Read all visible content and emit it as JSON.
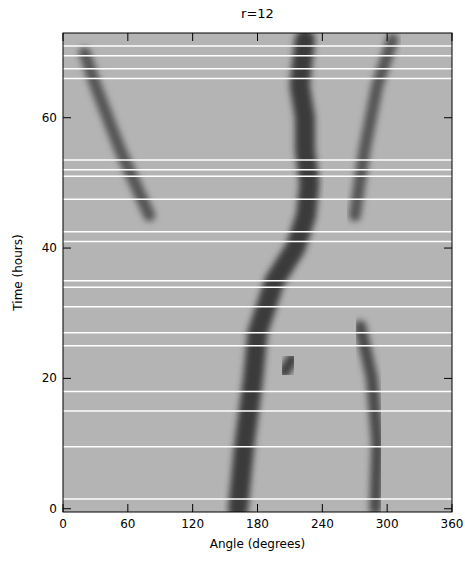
{
  "chart_data": {
    "type": "line",
    "title": "r=12",
    "x_label": "Angle (degrees)",
    "y_label": "Time (hours)",
    "xlim": [
      0,
      360
    ],
    "ylim": [
      -0.5,
      73
    ],
    "xticks": [
      0,
      60,
      120,
      180,
      240,
      300,
      360
    ],
    "yticks": [
      0,
      20,
      40,
      60
    ],
    "series": [
      {
        "color": "#3a3a3a",
        "x": [
          162,
          168,
          176,
          180,
          196,
          215,
          225,
          228,
          224,
          224,
          219,
          224
        ],
        "values": [
          0,
          10,
          20,
          27,
          35,
          40,
          45,
          50,
          55,
          60,
          65,
          72
        ]
      },
      {
        "color": "#4a4a4a",
        "x": [
          289,
          291,
          286,
          275
        ],
        "values": [
          0,
          10,
          20,
          28
        ]
      },
      {
        "color": "#555555",
        "x": [
          270,
          279,
          291,
          305
        ],
        "values": [
          45,
          55,
          65,
          72
        ]
      },
      {
        "color": "#555555",
        "x": [
          80,
          53,
          30,
          20
        ],
        "values": [
          45,
          55,
          65,
          70
        ]
      },
      {
        "color": "#404040",
        "x": [
          205,
          212
        ],
        "values": [
          21,
          23
        ]
      }
    ],
    "data_gaps": [
      1.5,
      9.5,
      15,
      18,
      25,
      27,
      31,
      34,
      35,
      41,
      42.5,
      47.5,
      51,
      52,
      53.5,
      66,
      67.5,
      69.5,
      71
    ]
  }
}
